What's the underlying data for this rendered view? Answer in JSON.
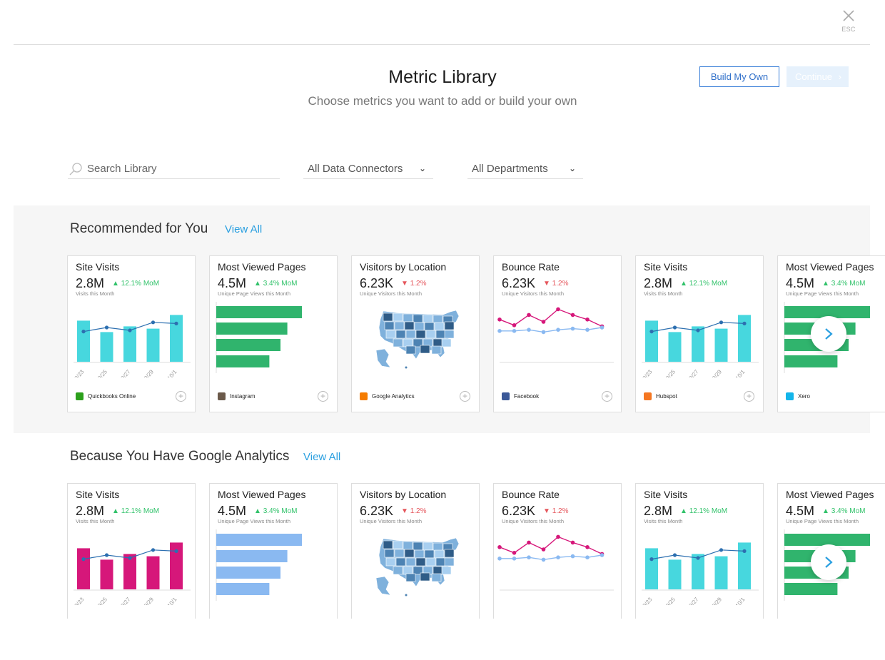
{
  "header": {
    "close_label": "ESC",
    "title": "Metric Library",
    "subtitle": "Choose metrics you want to add or build your own",
    "build_label": "Build My Own",
    "continue_label": "Continue"
  },
  "filters": {
    "search_placeholder": "Search Library",
    "connectors": "All Data Connectors",
    "departments": "All Departments"
  },
  "sections": [
    {
      "title": "Recommended for You",
      "view_all": "View All",
      "cards": [
        {
          "title": "Site Visits",
          "value": "2.8M",
          "delta": "12.1% MoM",
          "dir": "up",
          "sub": "Visits this Month",
          "chart": "bar",
          "bar_color": "#47d7de",
          "source": "Quickbooks Online",
          "source_color": "#2ca01c"
        },
        {
          "title": "Most Viewed Pages",
          "value": "4.5M",
          "delta": "3.4% MoM",
          "dir": "up",
          "sub": "Unique Page Views this Month",
          "chart": "hbar",
          "bar_color": "#30b46d",
          "source": "Instagram",
          "source_color": "#6b5a4a"
        },
        {
          "title": "Visitors by Location",
          "value": "6.23K",
          "delta": "1.2%",
          "dir": "down",
          "sub": "Unique Visitors this Month",
          "chart": "map",
          "source": "Google Analytics",
          "source_color": "#f57c00"
        },
        {
          "title": "Bounce Rate",
          "value": "6.23K",
          "delta": "1.2%",
          "dir": "down",
          "sub": "Unique Visitors this Month",
          "chart": "line",
          "source": "Facebook",
          "source_color": "#3b5998"
        },
        {
          "title": "Site Visits",
          "value": "2.8M",
          "delta": "12.1% MoM",
          "dir": "up",
          "sub": "Visits this Month",
          "chart": "bar",
          "bar_color": "#47d7de",
          "source": "Hubspot",
          "source_color": "#f57722"
        },
        {
          "title": "Most Viewed Pages",
          "value": "4.5M",
          "delta": "3.4% MoM",
          "dir": "up",
          "sub": "Unique Page Views this Month",
          "chart": "hbar",
          "bar_color": "#30b46d",
          "source": "Xero",
          "source_color": "#13b5ea"
        }
      ]
    },
    {
      "title": "Because You Have Google Analytics",
      "view_all": "View All",
      "cards": [
        {
          "title": "Site Visits",
          "value": "2.8M",
          "delta": "12.1% MoM",
          "dir": "up",
          "sub": "Visits this Month",
          "chart": "bar",
          "bar_color": "#d6177a"
        },
        {
          "title": "Most Viewed Pages",
          "value": "4.5M",
          "delta": "3.4% MoM",
          "dir": "up",
          "sub": "Unique Page Views this Month",
          "chart": "hbar",
          "bar_color": "#8ab9f1"
        },
        {
          "title": "Visitors by Location",
          "value": "6.23K",
          "delta": "1.2%",
          "dir": "down",
          "sub": "Unique Visitors this Month",
          "chart": "map"
        },
        {
          "title": "Bounce Rate",
          "value": "6.23K",
          "delta": "1.2%",
          "dir": "down",
          "sub": "Unique Visitors this Month",
          "chart": "line"
        },
        {
          "title": "Site Visits",
          "value": "2.8M",
          "delta": "12.1% MoM",
          "dir": "up",
          "sub": "Visits this Month",
          "chart": "bar",
          "bar_color": "#47d7de"
        },
        {
          "title": "Most Viewed Pages",
          "value": "4.5M",
          "delta": "3.4% MoM",
          "dir": "up",
          "sub": "Unique Page Views this Month",
          "chart": "hbar",
          "bar_color": "#30b46d"
        }
      ]
    }
  ],
  "chart_templates": {
    "bar": {
      "categories": [
        "9/23",
        "9/25",
        "9/27",
        "9/29",
        "10/1"
      ],
      "bars": [
        72,
        52,
        62,
        58,
        82
      ],
      "line": [
        53,
        60,
        55,
        69,
        67
      ],
      "ymax": 100,
      "line_color": "#2c6fb0"
    },
    "hbar": {
      "values": [
        100,
        83,
        75,
        62
      ]
    },
    "line": {
      "series_a": [
        74,
        64,
        82,
        70,
        92,
        82,
        74,
        62
      ],
      "series_b": [
        54,
        54,
        56,
        52,
        56,
        58,
        56,
        60
      ],
      "ymax": 100,
      "color_a": "#d6177a",
      "color_b": "#8ab9f1"
    },
    "map": {
      "colors": [
        "#2f5c87",
        "#4d83b3",
        "#7fb1dc",
        "#a8cff0"
      ]
    }
  }
}
